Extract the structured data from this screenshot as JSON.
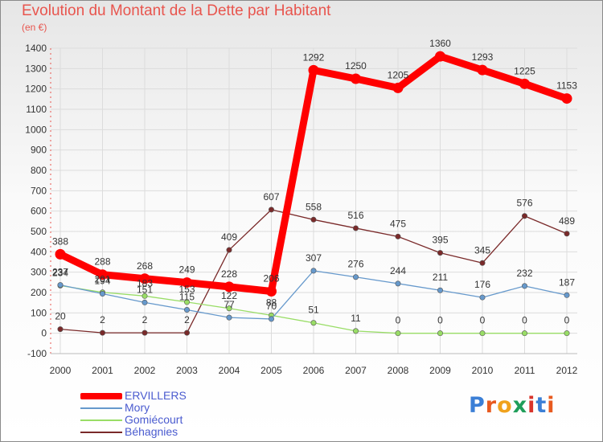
{
  "title": "Evolution du Montant de la Dette par Habitant",
  "unit": "(en €)",
  "logo": "Proxiti",
  "chart_data": {
    "type": "line",
    "x": [
      2000,
      2001,
      2002,
      2003,
      2004,
      2005,
      2006,
      2007,
      2008,
      2009,
      2010,
      2011,
      2012
    ],
    "ylim": [
      -100,
      1400
    ],
    "yticks": [
      -100,
      0,
      100,
      200,
      300,
      400,
      500,
      600,
      700,
      800,
      900,
      1000,
      1100,
      1200,
      1300,
      1400
    ],
    "grid": true,
    "legend_position": "bottom-left",
    "series": [
      {
        "name": "ERVILLERS",
        "color": "#ff0000",
        "values": [
          388,
          288,
          268,
          249,
          228,
          206,
          1292,
          1250,
          1205,
          1360,
          1293,
          1225,
          1153
        ],
        "labels": [
          "388",
          "288",
          "268",
          "249",
          "228",
          "206",
          "1292",
          "1250",
          "1205",
          "1360",
          "1293",
          "1225",
          "1153"
        ]
      },
      {
        "name": "Mory",
        "color": "#6699cc",
        "values": [
          237,
          194,
          151,
          115,
          77,
          70,
          307,
          276,
          244,
          211,
          176,
          232,
          187
        ],
        "labels": [
          "237",
          "194",
          "151",
          "115",
          "77",
          "70",
          "307",
          "276",
          "244",
          "211",
          "176",
          "232",
          "187"
        ]
      },
      {
        "name": "Gomiécourt",
        "color": "#99dd66",
        "values": [
          234,
          201,
          183,
          153,
          122,
          88,
          51,
          11,
          0,
          0,
          0,
          0,
          0
        ],
        "labels": [
          "234",
          "201",
          "183",
          "153",
          "122",
          "88",
          "51",
          "11",
          "0",
          "0",
          "0",
          "0",
          "0"
        ]
      },
      {
        "name": "Béhagnies",
        "color": "#7a2a2a",
        "values": [
          20,
          2,
          2,
          2,
          409,
          607,
          558,
          516,
          475,
          395,
          345,
          576,
          489
        ],
        "labels": [
          "20",
          "2",
          "2",
          "2",
          "409",
          "607",
          "558",
          "516",
          "475",
          "395",
          "345",
          "576",
          "489"
        ]
      }
    ]
  }
}
